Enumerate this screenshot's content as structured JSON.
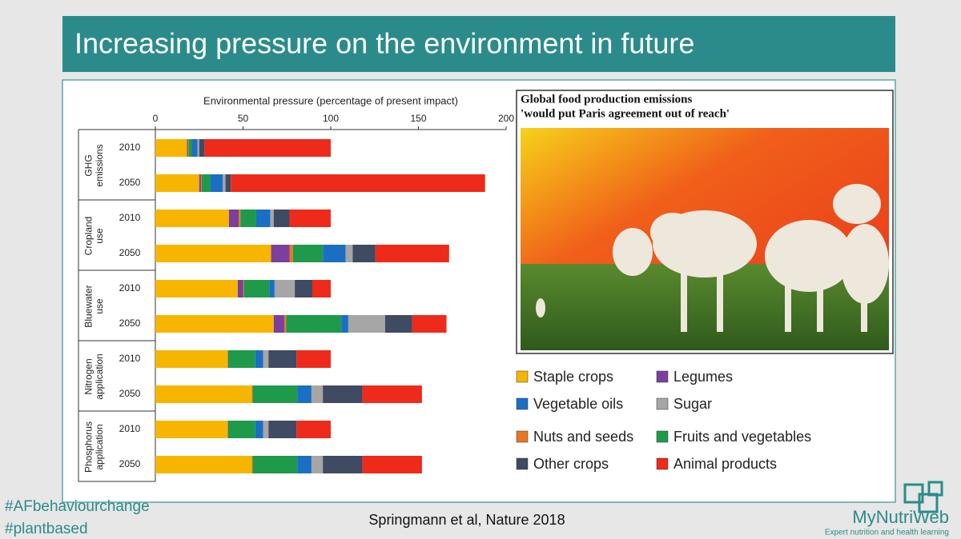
{
  "slide": {
    "title": "Increasing pressure on the environment in future",
    "hashtags": [
      "#AFbehaviourchange",
      "#plantbased"
    ],
    "citation": "Springmann et al, Nature 2018",
    "logo": {
      "name": "MyNutriWeb",
      "tagline": "Expert nutrition and health learning"
    }
  },
  "article": {
    "headline": [
      "Global food production emissions",
      "'would put Paris agreement out of reach'"
    ]
  },
  "chart_data": {
    "type": "stacked-bar-horizontal",
    "x_label": "Environmental pressure (percentage of present impact)",
    "xlim": [
      0,
      200
    ],
    "xticks": [
      0,
      50,
      100,
      150,
      200
    ],
    "grid": false,
    "group_labels": [
      [
        "GHG",
        "emissions"
      ],
      [
        "Cropland",
        "use"
      ],
      [
        "Bluewater",
        "use"
      ],
      [
        "Nitrogen",
        "application"
      ],
      [
        "Phosphorus",
        "application"
      ]
    ],
    "categories": [
      "2010",
      "2050",
      "2010",
      "2050",
      "2010",
      "2050",
      "2010",
      "2050",
      "2010",
      "2050"
    ],
    "series": [
      {
        "name": "Staple crops",
        "color": "#f7b500",
        "values": [
          18,
          25,
          42,
          66,
          47,
          67.5,
          41,
          55,
          41,
          55
        ]
      },
      {
        "name": "Legumes",
        "color": "#7b3fa0",
        "values": [
          0.5,
          1,
          5.5,
          10.5,
          3,
          6,
          0,
          0,
          0,
          0
        ]
      },
      {
        "name": "Nuts and seeds",
        "color": "#e87722",
        "values": [
          0.5,
          0.5,
          1,
          2,
          0.5,
          1,
          0.5,
          0.5,
          0.5,
          0.5
        ]
      },
      {
        "name": "Fruits and vegetables",
        "color": "#1e9a4a",
        "values": [
          2,
          5,
          9,
          17,
          14.5,
          31.5,
          15.5,
          25.5,
          15.5,
          25.5
        ]
      },
      {
        "name": "Vegetable oils",
        "color": "#1a6fc4",
        "values": [
          3,
          7,
          8,
          13,
          3,
          4,
          4.5,
          8,
          4.5,
          8
        ]
      },
      {
        "name": "Sugar",
        "color": "#a6a6a6",
        "values": [
          1,
          1.5,
          2,
          4,
          11.5,
          21,
          3,
          6.5,
          3,
          6.5
        ]
      },
      {
        "name": "Other crops",
        "color": "#3f4a63",
        "values": [
          3,
          3,
          9,
          13,
          10,
          15.5,
          16,
          22.5,
          16,
          22.5
        ]
      },
      {
        "name": "Animal products",
        "color": "#ee2a1b",
        "values": [
          72,
          145,
          23.5,
          42,
          10.5,
          19.5,
          19.5,
          34,
          19.5,
          34
        ]
      }
    ]
  }
}
